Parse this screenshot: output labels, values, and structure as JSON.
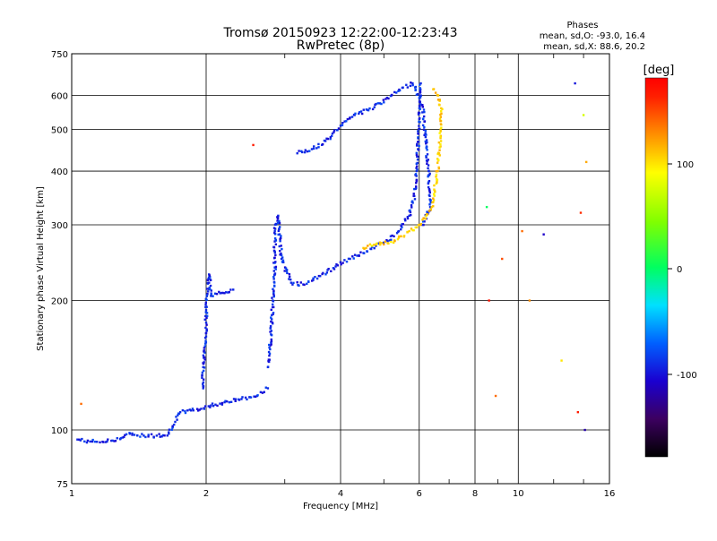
{
  "chart_data": {
    "type": "scatter",
    "title": "Tromsø 20150923 12:22:00-12:23:43",
    "subtitle": "RwPretec (8p)",
    "xlabel": "Frequency [MHz]",
    "ylabel": "Stationary phase Virtual Height [km]",
    "x_scale": "log",
    "y_scale": "log",
    "xlim": [
      1,
      16
    ],
    "ylim": [
      75,
      750
    ],
    "x_ticks": [
      "1",
      "2",
      "4",
      "6",
      "8",
      "10",
      "16"
    ],
    "y_ticks": [
      "75",
      "100",
      "200",
      "300",
      "400",
      "500",
      "600",
      "750"
    ],
    "grid": true,
    "phases_title": "Phases",
    "phases_line1": "mean, sd,O: -93.0, 16.4",
    "phases_line2": "mean, sd,X:  88.6, 20.2",
    "colorbar": {
      "label": "[deg]",
      "ticks": [
        "100",
        "0",
        "-100"
      ],
      "range": [
        -180,
        180
      ],
      "colors": [
        "#000000",
        "#3c0060",
        "#1a00d0",
        "#0060ff",
        "#00e0ff",
        "#00ff60",
        "#80ff00",
        "#ffff00",
        "#ff9000",
        "#ff2000",
        "#ff0000"
      ]
    },
    "o_trace": {
      "name": "",
      "phase": -93.0,
      "points": [
        [
          1.03,
          95
        ],
        [
          1.1,
          94
        ],
        [
          1.2,
          94
        ],
        [
          1.3,
          96
        ],
        [
          1.35,
          98
        ],
        [
          1.45,
          97
        ],
        [
          1.55,
          97
        ],
        [
          1.65,
          98
        ],
        [
          1.75,
          110
        ],
        [
          1.85,
          111
        ],
        [
          1.95,
          112
        ],
        [
          2.05,
          114
        ],
        [
          2.2,
          116
        ],
        [
          2.4,
          118
        ],
        [
          2.6,
          120
        ],
        [
          2.75,
          125
        ],
        [
          1.97,
          125
        ],
        [
          1.97,
          140
        ],
        [
          2.0,
          165
        ],
        [
          2.0,
          190
        ],
        [
          2.02,
          210
        ],
        [
          2.03,
          230
        ],
        [
          2.05,
          205
        ],
        [
          2.15,
          208
        ],
        [
          2.3,
          212
        ],
        [
          2.75,
          140
        ],
        [
          2.8,
          170
        ],
        [
          2.82,
          200
        ],
        [
          2.85,
          230
        ],
        [
          2.85,
          260
        ],
        [
          2.85,
          290
        ],
        [
          2.9,
          315
        ],
        [
          2.95,
          250
        ],
        [
          3.1,
          220
        ],
        [
          3.3,
          218
        ],
        [
          3.6,
          228
        ],
        [
          3.9,
          240
        ],
        [
          4.2,
          250
        ],
        [
          4.5,
          258
        ],
        [
          4.8,
          268
        ],
        [
          5.1,
          275
        ],
        [
          5.4,
          290
        ],
        [
          5.7,
          315
        ],
        [
          5.85,
          350
        ],
        [
          5.92,
          400
        ],
        [
          5.96,
          450
        ],
        [
          6.0,
          520
        ],
        [
          6.02,
          600
        ],
        [
          6.05,
          640
        ],
        [
          3.2,
          440
        ],
        [
          3.45,
          450
        ],
        [
          3.7,
          470
        ],
        [
          4.0,
          510
        ],
        [
          4.3,
          540
        ],
        [
          4.6,
          555
        ],
        [
          4.9,
          575
        ],
        [
          5.2,
          600
        ],
        [
          5.5,
          625
        ],
        [
          5.8,
          640
        ],
        [
          6.1,
          570
        ],
        [
          6.2,
          480
        ],
        [
          6.3,
          400
        ],
        [
          6.35,
          330
        ],
        [
          6.1,
          300
        ]
      ]
    },
    "x_trace": {
      "name": "",
      "phase": 88.6,
      "points": [
        [
          4.5,
          265
        ],
        [
          4.8,
          270
        ],
        [
          5.1,
          272
        ],
        [
          5.4,
          280
        ],
        [
          5.7,
          290
        ],
        [
          6.0,
          300
        ],
        [
          6.2,
          310
        ],
        [
          6.4,
          330
        ],
        [
          6.5,
          360
        ],
        [
          6.6,
          400
        ],
        [
          6.65,
          440
        ],
        [
          6.7,
          500
        ],
        [
          6.72,
          560
        ],
        [
          6.6,
          600
        ],
        [
          6.45,
          620
        ]
      ]
    },
    "scatter_noise": [
      [
        1.05,
        115,
        120
      ],
      [
        2.55,
        460,
        150
      ],
      [
        8.5,
        330,
        0
      ],
      [
        8.9,
        120,
        120
      ],
      [
        9.2,
        250,
        130
      ],
      [
        10.2,
        290,
        120
      ],
      [
        10.6,
        200,
        110
      ],
      [
        13.4,
        640,
        -100
      ],
      [
        13.8,
        320,
        140
      ],
      [
        14.0,
        540,
        60
      ],
      [
        14.2,
        420,
        100
      ],
      [
        12.5,
        145,
        80
      ],
      [
        11.4,
        285,
        -110
      ],
      [
        8.6,
        200,
        160
      ],
      [
        13.6,
        110,
        150
      ],
      [
        14.1,
        100,
        -120
      ]
    ]
  }
}
